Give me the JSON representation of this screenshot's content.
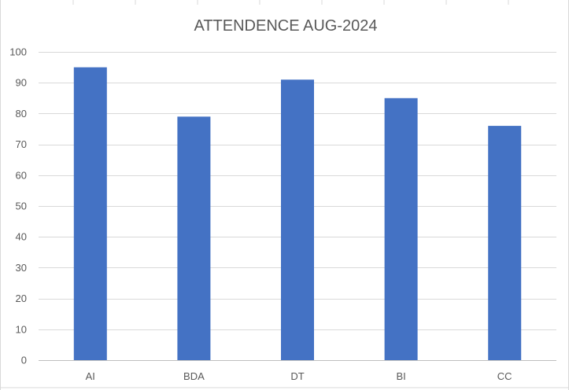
{
  "chart_data": {
    "type": "bar",
    "title": "ATTENDENCE AUG-2024",
    "xlabel": "",
    "ylabel": "",
    "categories": [
      "AI",
      "BDA",
      "DT",
      "BI",
      "CC"
    ],
    "values": [
      95,
      79,
      91,
      85,
      76
    ],
    "ylim": [
      0,
      100
    ],
    "yticks": [
      "0",
      "10",
      "20",
      "30",
      "40",
      "50",
      "60",
      "70",
      "80",
      "90",
      "100"
    ],
    "grid": true,
    "legend": "none",
    "bar_color": "#4472C4"
  },
  "colors": {
    "gridline": "#d9d9d9",
    "text": "#595959",
    "background": "#ffffff"
  }
}
